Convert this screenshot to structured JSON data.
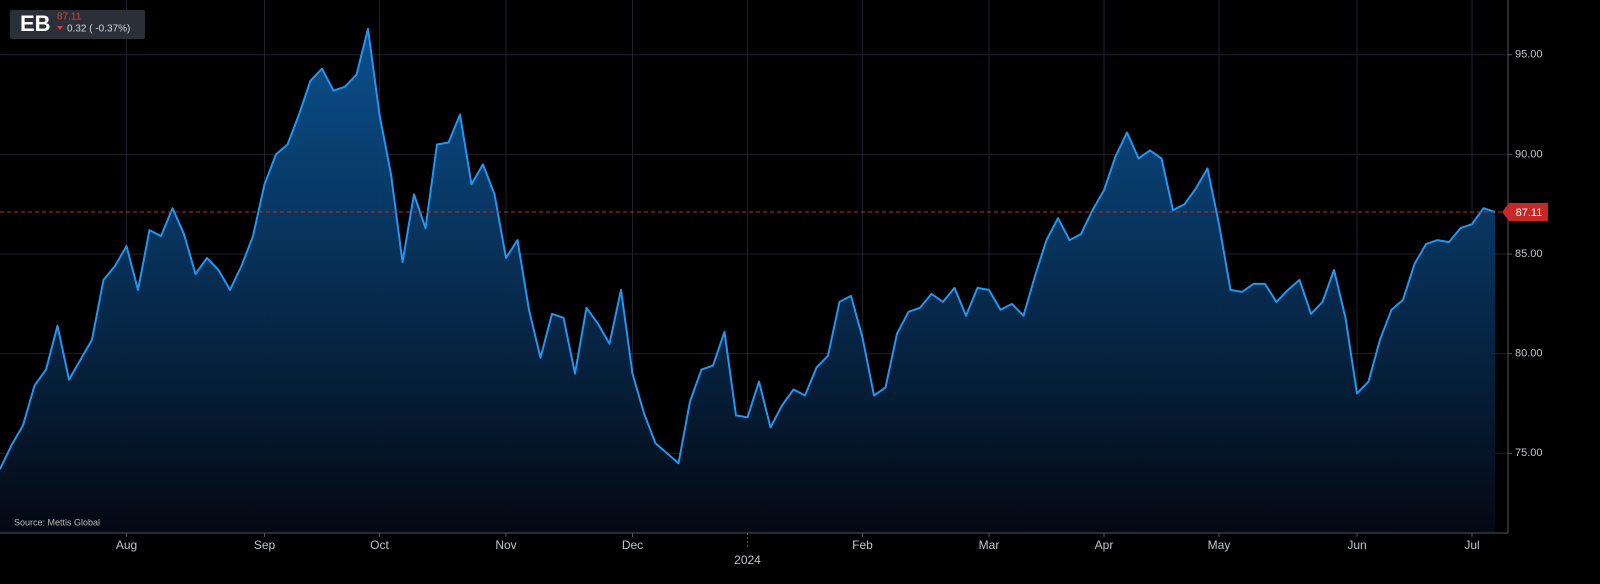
{
  "header": {
    "ticker": "EB",
    "change_label": "0.32 ( -0.37%)"
  },
  "chart_data": {
    "type": "area",
    "source": "Source: Mettis Global",
    "categories": [
      null,
      null,
      null,
      null,
      null,
      null,
      null,
      null,
      null,
      null,
      null,
      "Aug",
      null,
      null,
      null,
      null,
      null,
      null,
      null,
      null,
      null,
      null,
      null,
      "Sep",
      null,
      null,
      null,
      null,
      null,
      null,
      null,
      null,
      null,
      "Oct",
      null,
      null,
      null,
      null,
      null,
      null,
      null,
      null,
      null,
      null,
      "Nov",
      null,
      null,
      null,
      null,
      null,
      null,
      null,
      null,
      null,
      null,
      "Dec",
      null,
      null,
      null,
      null,
      null,
      null,
      null,
      null,
      null,
      "2024",
      null,
      null,
      null,
      null,
      null,
      null,
      null,
      null,
      null,
      "Feb",
      null,
      null,
      null,
      null,
      null,
      null,
      null,
      null,
      null,
      null,
      "Mar",
      null,
      null,
      null,
      null,
      null,
      null,
      null,
      null,
      null,
      "Apr",
      null,
      null,
      null,
      null,
      null,
      null,
      null,
      null,
      null,
      "May",
      null,
      null,
      null,
      null,
      null,
      null,
      null,
      null,
      null,
      null,
      null,
      "Jun",
      null,
      null,
      null,
      null,
      null,
      null,
      null,
      null,
      null,
      "Jul",
      null,
      null
    ],
    "series": [
      {
        "name": "EB",
        "color": "#2196f3",
        "values": [
          74.2,
          75.4,
          76.4,
          78.4,
          79.2,
          81.4,
          78.7,
          79.7,
          80.7,
          83.7,
          84.4,
          85.4,
          83.2,
          86.2,
          85.9,
          87.3,
          86.0,
          84.0,
          84.8,
          84.2,
          83.2,
          84.4,
          85.9,
          88.5,
          90.0,
          90.5,
          92.0,
          93.7,
          94.3,
          93.2,
          93.4,
          94.0,
          96.3,
          92.0,
          89.0,
          84.6,
          88.0,
          86.3,
          90.5,
          90.6,
          92.0,
          88.5,
          89.5,
          88.0,
          84.8,
          85.7,
          82.2,
          79.8,
          82.0,
          81.8,
          79.0,
          82.3,
          81.5,
          80.5,
          83.2,
          79.0,
          77.0,
          75.5,
          75.0,
          74.5,
          77.6,
          79.2,
          79.4,
          81.1,
          76.9,
          76.8,
          78.6,
          76.3,
          77.4,
          78.2,
          77.9,
          79.3,
          79.9,
          82.6,
          82.9,
          80.8,
          77.9,
          78.3,
          81.0,
          82.1,
          82.3,
          83.0,
          82.6,
          83.3,
          81.9,
          83.3,
          83.2,
          82.2,
          82.5,
          81.9,
          83.9,
          85.7,
          86.8,
          85.7,
          86.0,
          87.2,
          88.2,
          89.9,
          91.1,
          89.8,
          90.2,
          89.8,
          87.2,
          87.5,
          88.3,
          89.3,
          86.5,
          83.2,
          83.1,
          83.5,
          83.5,
          82.6,
          83.2,
          83.7,
          82.0,
          82.6,
          84.2,
          81.8,
          78.0,
          78.6,
          80.7,
          82.2,
          82.7,
          84.5,
          85.5,
          85.7,
          85.6,
          86.3,
          86.5,
          87.3,
          87.11
        ]
      }
    ],
    "ref_color": "#c62828",
    "ylim": [
      71,
      97.75
    ],
    "yticks": [
      {
        "value": 75,
        "label": "75.00"
      },
      {
        "value": 80,
        "label": "80.00"
      },
      {
        "value": 85,
        "label": "85.00"
      },
      {
        "value": 90,
        "label": "90.00"
      },
      {
        "value": 95,
        "label": "95.00"
      }
    ],
    "grid": true
  }
}
